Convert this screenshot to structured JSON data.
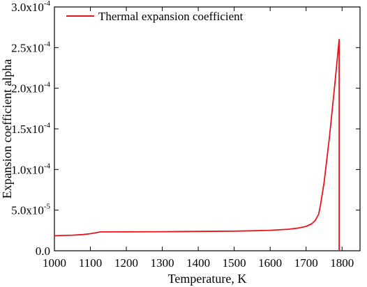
{
  "chart_data": {
    "type": "line",
    "xlabel": "Temperature, K",
    "ylabel": "Expansion coefficient alpha",
    "xlim": [
      1000,
      1850
    ],
    "ylim": [
      0,
      0.0003
    ],
    "x_ticks": [
      1000,
      1100,
      1200,
      1300,
      1400,
      1500,
      1600,
      1700,
      1800
    ],
    "x_tick_labels": [
      "1000",
      "1100",
      "1200",
      "1300",
      "1400",
      "1500",
      "1600",
      "1700",
      "1800"
    ],
    "y_ticks": [
      {
        "value": 0,
        "mantissa": "0.0",
        "exponent": ""
      },
      {
        "value": 5e-05,
        "mantissa": "5.0x10",
        "exponent": "-5"
      },
      {
        "value": 0.0001,
        "mantissa": "1.0x10",
        "exponent": "-4"
      },
      {
        "value": 0.00015,
        "mantissa": "1.5x10",
        "exponent": "-4"
      },
      {
        "value": 0.0002,
        "mantissa": "2.0x10",
        "exponent": "-4"
      },
      {
        "value": 0.00025,
        "mantissa": "2.5x10",
        "exponent": "-4"
      },
      {
        "value": 0.0003,
        "mantissa": "3.0x10",
        "exponent": "-4"
      }
    ],
    "grid": false,
    "legend_position": "top-left",
    "series": [
      {
        "name": "Thermal expansion coefficient",
        "color": "#e8141b",
        "x": [
          1000,
          1050,
          1080,
          1100,
          1115,
          1128,
          1200,
          1300,
          1400,
          1500,
          1550,
          1600,
          1650,
          1680,
          1700,
          1715,
          1725,
          1735,
          1740,
          1745,
          1750,
          1765,
          1780,
          1792,
          1792
        ],
        "y": [
          1.85e-05,
          1.92e-05,
          2e-05,
          2.1e-05,
          2.22e-05,
          2.32e-05,
          2.33e-05,
          2.35e-05,
          2.38e-05,
          2.42e-05,
          2.46e-05,
          2.52e-05,
          2.65e-05,
          2.8e-05,
          3e-05,
          3.3e-05,
          3.7e-05,
          4.5e-05,
          5.6e-05,
          7e-05,
          8.4e-05,
          0.00014,
          0.000205,
          0.00026,
          0.0
        ]
      }
    ]
  }
}
